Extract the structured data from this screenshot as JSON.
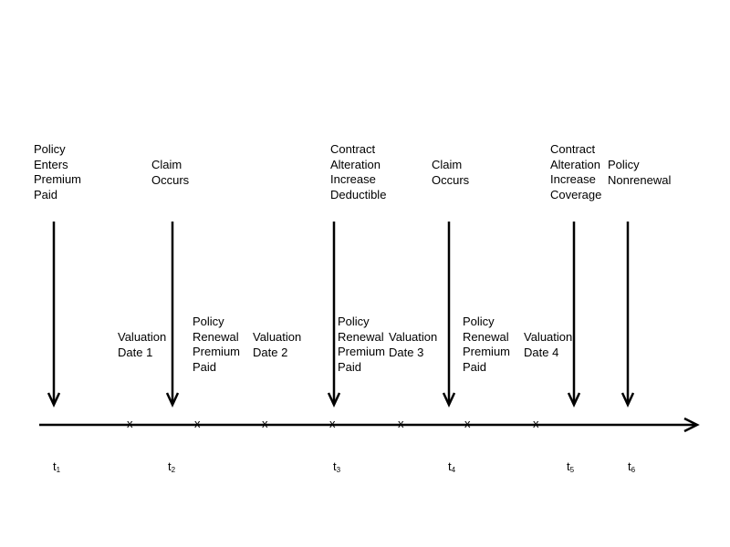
{
  "event_labels": {
    "policy_enters": "Policy\nEnters\nPremium\nPaid",
    "claim_1": "Claim\nOccurs",
    "contract_alteration_deductible": "Contract\nAlteration\nIncrease\nDeductible",
    "claim_2": "Claim\nOccurs",
    "contract_alteration_coverage": "Contract\nAlteration\nIncrease\nCoverage",
    "policy_nonrenewal": "Policy\nNonrenewal"
  },
  "mid_labels": {
    "valuation_1": "Valuation\nDate 1",
    "renewal_1": "Policy\nRenewal\nPremium\nPaid",
    "valuation_2": "Valuation\nDate 2",
    "renewal_2": "Policy\nRenewal\nPremium\nPaid",
    "valuation_3": "Valuation\nDate 3",
    "renewal_3": "Policy\nRenewal\nPremium\nPaid",
    "valuation_4": "Valuation\nDate 4"
  },
  "time_labels": [
    {
      "base": "t",
      "sub": "1"
    },
    {
      "base": "t",
      "sub": "2"
    },
    {
      "base": "t",
      "sub": "3"
    },
    {
      "base": "t",
      "sub": "4"
    },
    {
      "base": "t",
      "sub": "5"
    },
    {
      "base": "t",
      "sub": "6"
    }
  ],
  "tick_mark": "x",
  "colors": {
    "line": "#000000",
    "background": "#ffffff"
  }
}
